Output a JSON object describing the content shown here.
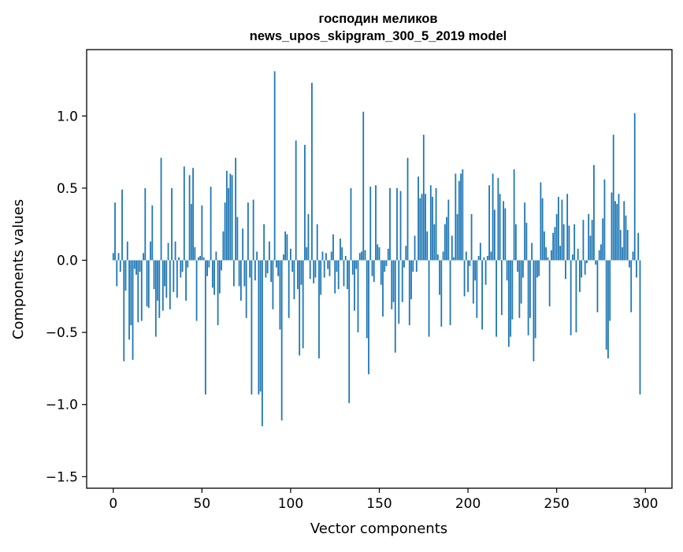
{
  "chart_data": {
    "type": "bar",
    "title_line1": "господин меликов",
    "title_line2": "news_upos_skipgram_300_5_2019 model",
    "xlabel": "Vector components",
    "ylabel": "Components values",
    "xlim": [
      -15,
      315
    ],
    "ylim": [
      -1.58,
      1.46
    ],
    "x_ticks": [
      0,
      50,
      100,
      150,
      200,
      250,
      300
    ],
    "x_tick_labels": [
      "0",
      "50",
      "100",
      "150",
      "200",
      "250",
      "300"
    ],
    "y_ticks": [
      -1.5,
      -1.0,
      -0.5,
      0.0,
      0.5,
      1.0
    ],
    "y_tick_labels": [
      "−1.5",
      "−1.0",
      "−0.5",
      "0.0",
      "0.5",
      "1.0"
    ],
    "bar_color": "#1f77b4",
    "grid": false,
    "legend": "none",
    "values": [
      0.05,
      0.4,
      -0.18,
      0.05,
      -0.08,
      0.49,
      -0.7,
      -0.21,
      0.13,
      -0.55,
      -0.45,
      -0.69,
      -0.06,
      -0.1,
      -0.43,
      -0.08,
      -0.42,
      0.05,
      0.5,
      -0.32,
      -0.33,
      0.13,
      0.38,
      -0.2,
      -0.53,
      -0.28,
      -0.4,
      0.71,
      -0.35,
      -0.18,
      -0.26,
      0.12,
      -0.34,
      0.5,
      -0.22,
      0.13,
      -0.26,
      0.02,
      -0.12,
      -0.08,
      0.65,
      -0.28,
      -0.05,
      0.59,
      0.39,
      0.64,
      0.09,
      -0.42,
      0.02,
      0.03,
      0.38,
      0.02,
      -0.93,
      -0.11,
      -0.05,
      0.51,
      -0.19,
      -0.24,
      0.06,
      -0.45,
      -0.23,
      -0.07,
      0.2,
      0.4,
      0.62,
      0.5,
      0.6,
      0.59,
      -0.18,
      0.71,
      0.3,
      -0.18,
      -0.28,
      0.22,
      -0.18,
      -0.4,
      0.4,
      -0.12,
      -0.93,
      0.42,
      -0.14,
      0.06,
      -0.93,
      -0.91,
      -1.15,
      0.25,
      -0.12,
      -0.09,
      0.13,
      -0.15,
      -0.34,
      1.31,
      -0.05,
      -0.11,
      -0.48,
      -1.11,
      0.04,
      0.2,
      0.18,
      -0.4,
      0.08,
      -0.08,
      -0.27,
      0.83,
      -0.2,
      -0.66,
      -0.17,
      -0.61,
      0.8,
      0.09,
      0.32,
      -0.13,
      1.23,
      -0.16,
      -0.12,
      0.25,
      -0.68,
      -0.24,
      0.06,
      -0.12,
      0.05,
      -0.06,
      -0.11,
      0.06,
      0.18,
      -0.23,
      -0.08,
      -0.2,
      0.15,
      0.09,
      -0.18,
      0.03,
      -0.2,
      -0.99,
      0.5,
      -0.1,
      -0.35,
      -0.06,
      -0.5,
      0.05,
      0.06,
      1.03,
      0.07,
      -0.54,
      -0.79,
      0.51,
      -0.11,
      -0.15,
      0.52,
      0.11,
      0.09,
      -0.17,
      -0.39,
      -0.08,
      -0.04,
      0.08,
      0.5,
      -0.34,
      -0.29,
      -0.64,
      0.5,
      -0.44,
      0.48,
      -0.29,
      -0.05,
      0.1,
      0.71,
      -0.45,
      -0.27,
      -0.08,
      0.17,
      -0.08,
      0.58,
      0.43,
      0.46,
      0.87,
      0.46,
      0.2,
      -0.53,
      0.52,
      0.44,
      0.25,
      0.5,
      0.04,
      -0.24,
      -0.46,
      0.06,
      0.25,
      0.3,
      0.42,
      -0.45,
      0.17,
      0.02,
      0.6,
      0.32,
      0.55,
      0.6,
      0.63,
      -0.25,
      0.06,
      -0.22,
      -0.04,
      0.32,
      -0.3,
      -0.14,
      -0.4,
      0.03,
      0.12,
      -0.48,
      0.02,
      -0.17,
      0.03,
      0.52,
      0.06,
      0.6,
      0.35,
      -0.53,
      0.57,
      0.46,
      -0.38,
      0.41,
      0.36,
      -0.14,
      -0.6,
      -0.53,
      -0.41,
      0.63,
      0.25,
      -0.08,
      -0.4,
      -0.3,
      -0.12,
      0.4,
      0.26,
      -0.52,
      -0.4,
      0.12,
      -0.7,
      -0.54,
      -0.12,
      -0.11,
      0.54,
      0.43,
      0.2,
      0.09,
      0.02,
      -0.32,
      0.07,
      0.19,
      0.23,
      0.32,
      0.44,
      0.1,
      0.42,
      0.25,
      -0.13,
      0.46,
      0.24,
      -0.52,
      0.04,
      0.25,
      -0.5,
      0.08,
      -0.22,
      -0.12,
      0.28,
      -0.1,
      -0.02,
      0.32,
      0.17,
      0.28,
      0.66,
      -0.03,
      -0.36,
      0.07,
      0.11,
      0.29,
      0.56,
      -0.62,
      -0.68,
      -0.42,
      0.47,
      0.87,
      0.41,
      0.39,
      0.46,
      0.21,
      0.09,
      0.41,
      0.31,
      0.21,
      -0.05,
      -0.36,
      0.06,
      1.02,
      -0.12,
      0.19,
      -0.93
    ]
  }
}
